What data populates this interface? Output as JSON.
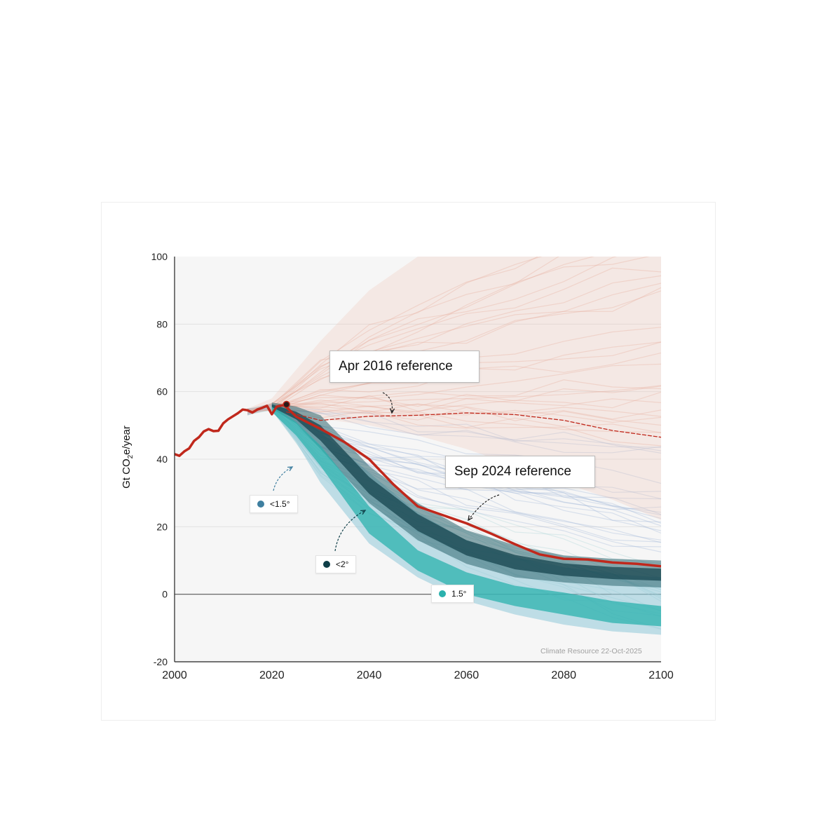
{
  "chart_data": {
    "type": "line",
    "title": "",
    "xlabel": "",
    "ylabel": "Gt CO₂e/year",
    "xlim": [
      2000,
      2100
    ],
    "ylim": [
      -20,
      100
    ],
    "x_ticks": [
      2000,
      2020,
      2040,
      2060,
      2080,
      2100
    ],
    "y_ticks": [
      -20,
      0,
      20,
      40,
      60,
      80,
      100
    ],
    "grid": true,
    "credit": "Climate Resource 22-Oct-2025",
    "colors": {
      "history": "#c0281c",
      "lt15": "#3f7fa0",
      "lt2": "#0f3f48",
      "p15": "#2bb1ad",
      "scenario_red": "#e2a090",
      "scenario_blue": "#9fb4d8"
    },
    "series": [
      {
        "name": "",
        "style": "historical",
        "x": [
          2000,
          2001,
          2002,
          2003,
          2004,
          2005,
          2006,
          2007,
          2008,
          2009,
          2010,
          2011,
          2012,
          2013,
          2014,
          2015,
          2016,
          2017,
          2018,
          2019,
          2020,
          2021,
          2022,
          2023
        ],
        "y": [
          41.5,
          41.0,
          42.3,
          43.2,
          45.4,
          46.5,
          48.2,
          48.9,
          48.3,
          48.4,
          50.6,
          51.8,
          52.7,
          53.6,
          54.7,
          54.5,
          53.8,
          54.7,
          55.2,
          55.8,
          53.3,
          55.6,
          55.9,
          56.2
        ]
      },
      {
        "name": "Sep 2024 reference",
        "style": "solid",
        "x": [
          2023,
          2025,
          2030,
          2035,
          2040,
          2045,
          2050,
          2055,
          2060,
          2065,
          2070,
          2075,
          2080,
          2085,
          2090,
          2095,
          2100
        ],
        "y": [
          55.4,
          52.6,
          49.0,
          45.0,
          40.0,
          32.5,
          26.0,
          23.5,
          21.0,
          18.0,
          14.8,
          11.8,
          10.5,
          10.3,
          9.4,
          9.0,
          8.3
        ]
      },
      {
        "name": "Apr 2016 reference",
        "style": "dashed",
        "x": [
          2023,
          2030,
          2040,
          2050,
          2060,
          2070,
          2080,
          2090,
          2100
        ],
        "y": [
          54.0,
          51.5,
          52.7,
          53.0,
          53.7,
          53.2,
          51.5,
          48.5,
          46.5
        ]
      }
    ],
    "bands": [
      {
        "name": "<1.5°",
        "x": [
          2020,
          2025,
          2030,
          2040,
          2050,
          2060,
          2070,
          2080,
          2090,
          2100
        ],
        "low": [
          54.5,
          45.0,
          33.0,
          15.0,
          5.0,
          -2.0,
          -6.0,
          -9.0,
          -11.0,
          -12.0
        ],
        "high": [
          56.5,
          53.5,
          48.0,
          36.0,
          24.0,
          16.0,
          11.0,
          8.0,
          6.0,
          5.0
        ]
      },
      {
        "name": "<2°",
        "x": [
          2020,
          2025,
          2030,
          2040,
          2050,
          2060,
          2070,
          2080,
          2090,
          2100
        ],
        "low": [
          55.0,
          50.5,
          43.0,
          27.0,
          16.0,
          9.0,
          5.0,
          3.5,
          2.5,
          2.0
        ],
        "high": [
          56.8,
          55.6,
          53.0,
          38.0,
          27.0,
          19.0,
          14.5,
          11.5,
          10.5,
          10.0
        ]
      },
      {
        "name": "1.5°",
        "x": [
          2020,
          2025,
          2030,
          2040,
          2050,
          2060,
          2070,
          2080,
          2090,
          2100
        ],
        "low": [
          54.0,
          47.0,
          38.0,
          18.0,
          7.0,
          0.0,
          -3.5,
          -6.0,
          -8.5,
          -9.5
        ],
        "high": [
          56.0,
          51.0,
          44.0,
          26.0,
          13.0,
          6.5,
          2.5,
          0.5,
          -2.0,
          -3.5
        ]
      }
    ],
    "annotations": [
      {
        "text": "Apr 2016 reference",
        "points_to": [
          2045,
          53
        ]
      },
      {
        "text": "Sep 2024 reference",
        "points_to": [
          2060,
          21
        ]
      }
    ],
    "legend": [
      {
        "label": "<1.5°",
        "color": "#3f7fa0"
      },
      {
        "label": "<2°",
        "color": "#0f3f48"
      },
      {
        "label": "1.5°",
        "color": "#2bb1ad"
      }
    ]
  }
}
